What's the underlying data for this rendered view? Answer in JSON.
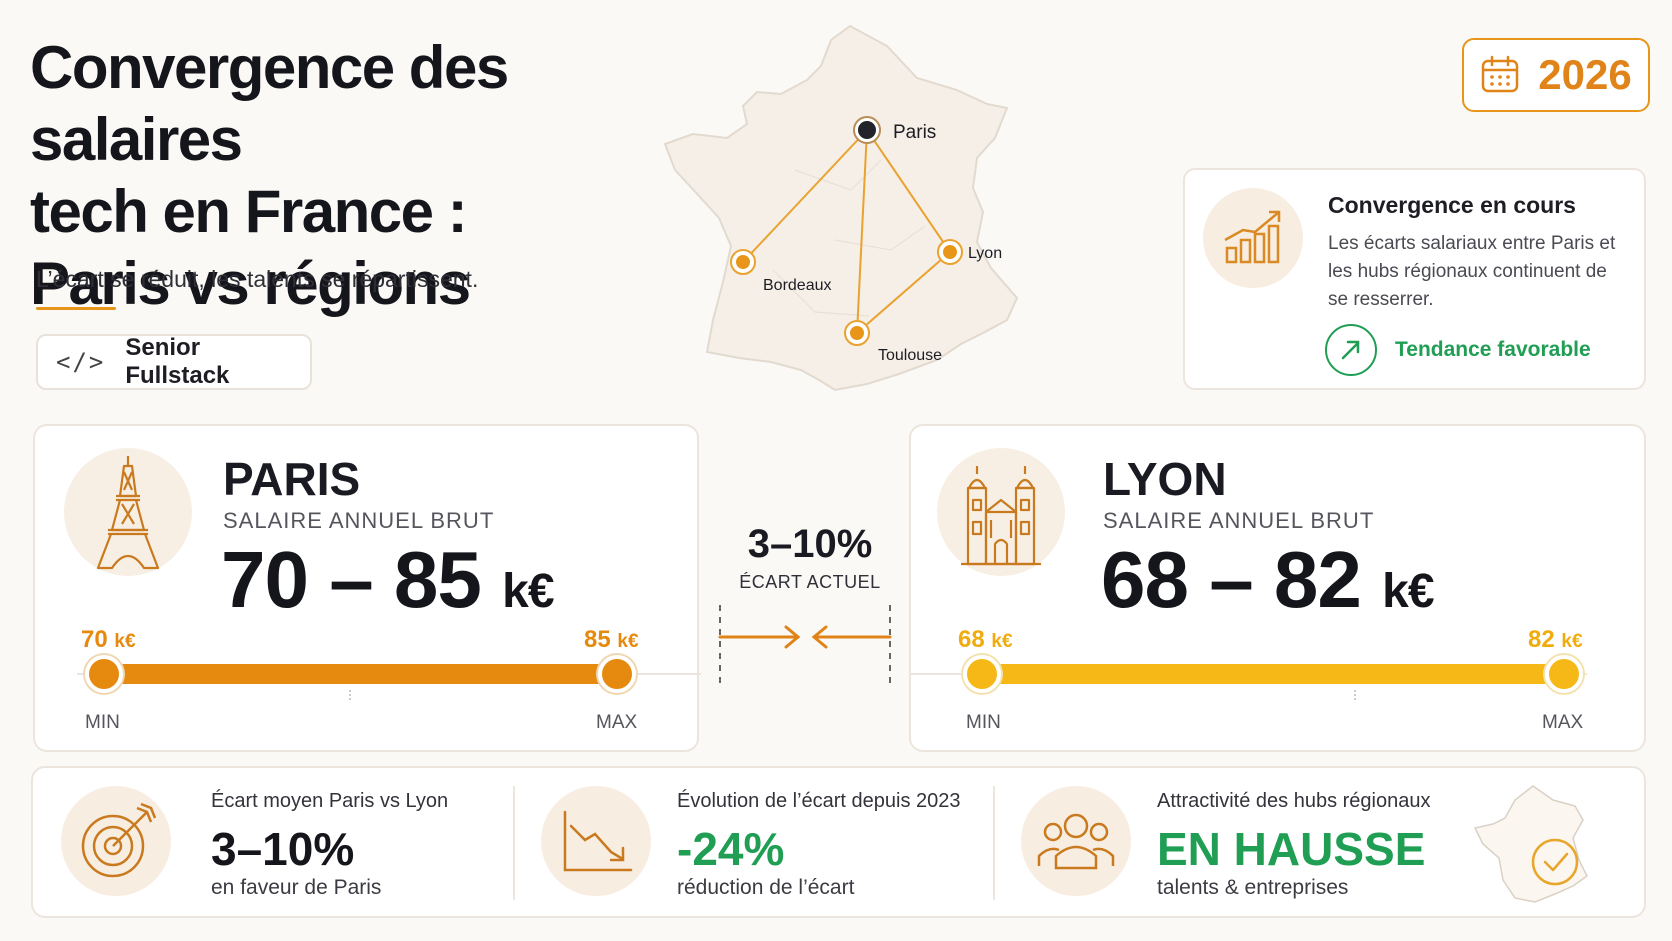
{
  "title": {
    "line1": "Convergence des salaires",
    "line2": "tech en France :",
    "line3": "Paris vs régions"
  },
  "subtitle": "L’écart se réduit, les talents se répartissent.",
  "role": {
    "code_glyph": "</>",
    "label": "Senior Fullstack"
  },
  "year": "2026",
  "map": {
    "cities": {
      "paris": "Paris",
      "bordeaux": "Bordeaux",
      "lyon": "Lyon",
      "toulouse": "Toulouse"
    }
  },
  "convergence": {
    "title": "Convergence en cours",
    "description": "Les écarts salariaux entre Paris et les hubs régionaux continuent de se resserrer.",
    "trend": "Tendance favorable"
  },
  "paris": {
    "name": "PARIS",
    "subtitle": "SALAIRE ANNUEL BRUT",
    "range": "70 – 85",
    "unit": "k€",
    "min_value": "70",
    "max_value": "85",
    "min_label": "MIN",
    "max_label": "MAX",
    "color": "#e58a0f"
  },
  "lyon": {
    "name": "LYON",
    "subtitle": "SALAIRE ANNUEL BRUT",
    "range": "68 – 82",
    "unit": "k€",
    "min_value": "68",
    "max_value": "82",
    "min_label": "MIN",
    "max_label": "MAX",
    "color": "#f5b817"
  },
  "gap": {
    "value": "3–10%",
    "label": "ÉCART ACTUEL"
  },
  "stats": [
    {
      "label": "Écart moyen Paris vs Lyon",
      "value": "3–10%",
      "sub": "en faveur de Paris",
      "icon": "target-icon",
      "value_color": "#15151c"
    },
    {
      "label": "Évolution de l’écart depuis 2023",
      "value": "-24%",
      "sub": "réduction de l’écart",
      "icon": "chart-down-icon",
      "value_color": "#1f9e54"
    },
    {
      "label": "Attractivité des hubs régionaux",
      "value": "EN HAUSSE",
      "sub": "talents & entreprises",
      "icon": "people-icon",
      "value_color": "#1f9e54"
    }
  ],
  "colors": {
    "accent": "#e8961a",
    "green": "#1f9e54"
  }
}
